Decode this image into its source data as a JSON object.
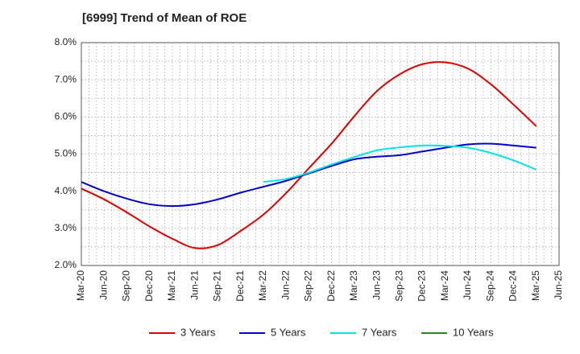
{
  "chart_data": {
    "type": "line",
    "title": "[6999]  Trend of Mean of ROE",
    "xlabel": "",
    "ylabel": "",
    "ylim": [
      2.0,
      8.0
    ],
    "yticks": [
      "2.0%",
      "3.0%",
      "4.0%",
      "5.0%",
      "6.0%",
      "7.0%",
      "8.0%"
    ],
    "ytick_values": [
      2,
      3,
      4,
      5,
      6,
      7,
      8
    ],
    "categories": [
      "Mar-20",
      "Jun-20",
      "Sep-20",
      "Dec-20",
      "Mar-21",
      "Jun-21",
      "Sep-21",
      "Dec-21",
      "Mar-22",
      "Jun-22",
      "Sep-22",
      "Dec-22",
      "Mar-23",
      "Jun-23",
      "Sep-23",
      "Dec-23",
      "Mar-24",
      "Jun-24",
      "Sep-24",
      "Dec-24",
      "Mar-25",
      "Jun-25"
    ],
    "grid": true,
    "legend_position": "bottom",
    "series": [
      {
        "name": "3 Years",
        "color": "#e00000",
        "values": [
          4.07,
          3.78,
          3.43,
          3.05,
          2.72,
          2.47,
          2.55,
          2.93,
          3.37,
          3.95,
          4.62,
          5.28,
          6.02,
          6.7,
          7.15,
          7.42,
          7.47,
          7.3,
          6.88,
          6.33,
          5.75,
          null
        ]
      },
      {
        "name": "5 Years",
        "color": "#0000cc",
        "values": [
          4.25,
          4.0,
          3.8,
          3.65,
          3.6,
          3.65,
          3.78,
          3.96,
          4.12,
          4.28,
          4.48,
          4.68,
          4.86,
          4.93,
          4.97,
          5.07,
          5.17,
          5.26,
          5.28,
          5.23,
          5.17,
          null
        ]
      },
      {
        "name": "7 Years",
        "color": "#00e5e5",
        "values": [
          null,
          null,
          null,
          null,
          null,
          null,
          null,
          null,
          4.25,
          4.33,
          4.5,
          4.72,
          4.92,
          5.1,
          5.18,
          5.23,
          5.22,
          5.17,
          5.03,
          4.83,
          4.58,
          null
        ]
      },
      {
        "name": "10 Years",
        "color": "#228b22",
        "values": [
          null,
          null,
          null,
          null,
          null,
          null,
          null,
          null,
          null,
          null,
          null,
          null,
          null,
          null,
          null,
          null,
          null,
          null,
          null,
          null,
          null,
          null
        ]
      }
    ]
  }
}
